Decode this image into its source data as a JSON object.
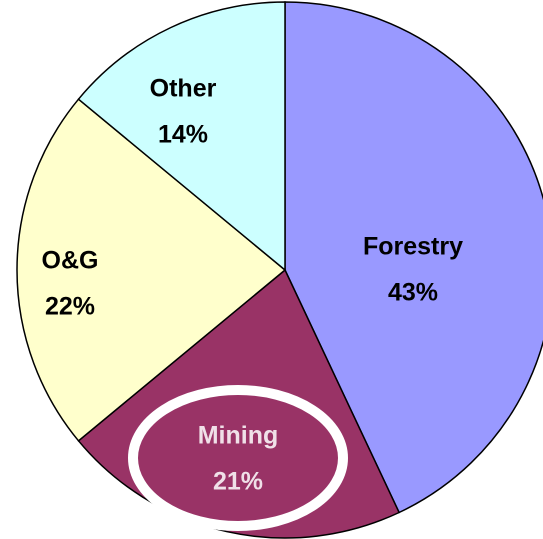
{
  "chart_data": {
    "type": "pie",
    "categories": [
      "Forestry",
      "Mining",
      "O&G",
      "Other"
    ],
    "values": [
      43,
      21,
      22,
      14
    ],
    "value_labels": [
      "43%",
      "21%",
      "22%",
      "14%"
    ],
    "colors": [
      "#9999ff",
      "#993366",
      "#ffffcc",
      "#ccffff"
    ],
    "label_colors": [
      "#000000",
      "#f0e0e8",
      "#000000",
      "#000000"
    ]
  }
}
